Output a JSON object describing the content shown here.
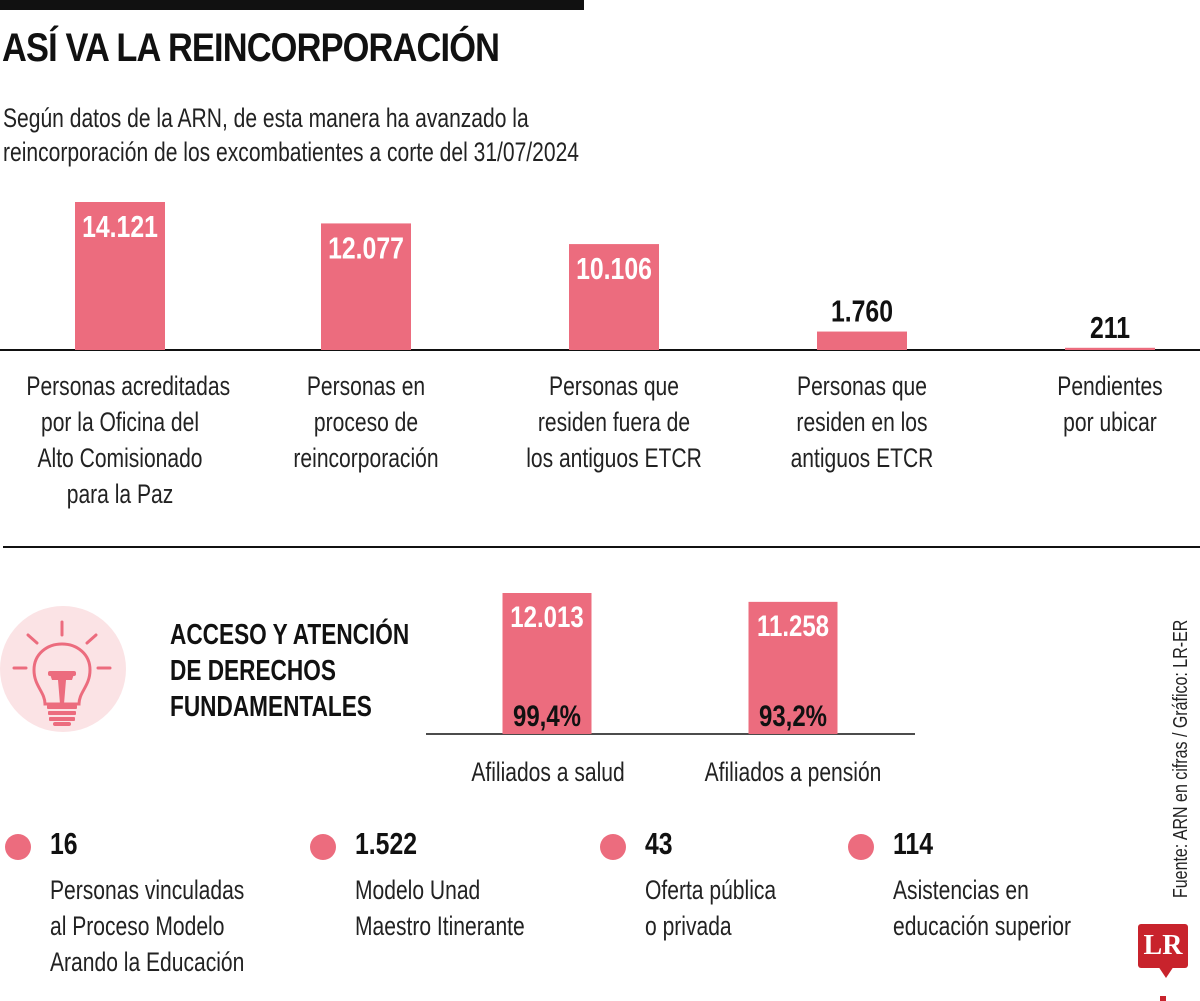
{
  "header": {
    "title": "ASÍ VA LA REINCORPORACIÓN",
    "subtitle_lines": [
      "Según datos de la ARN, de esta manera ha avanzado la",
      "reincorporación de los excombatientes a corte del 31/07/2024"
    ]
  },
  "colors": {
    "bar": "#ec6c7e",
    "icon_background": "#fbe3e5",
    "text": "#111111",
    "logo": "#c8232c"
  },
  "chart_data": [
    {
      "type": "bar",
      "title": "Así va la reincorporación",
      "categories": [
        "Personas acreditadas por la Oficina del Alto Comisionado para la Paz",
        "Personas en proceso de reincorporación",
        "Personas que residen fuera de los antiguos ETCR",
        "Personas que residen en los antiguos ETCR",
        "Pendientes por ubicar"
      ],
      "category_lines": [
        [
          "Personas acreditadas",
          "por la Oficina del",
          "Alto Comisionado",
          "para la Paz"
        ],
        [
          "Personas en",
          "proceso de",
          "reincorporación"
        ],
        [
          "Personas que",
          "residen fuera de",
          "los antiguos ETCR"
        ],
        [
          "Personas que",
          "residen en los",
          "antiguos ETCR"
        ],
        [
          "Pendientes",
          "por ubicar"
        ]
      ],
      "values": [
        14121,
        12077,
        10106,
        1760,
        211
      ],
      "value_labels": [
        "14.121",
        "12.077",
        "10.106",
        "1.760",
        "211"
      ],
      "xlabel": "",
      "ylabel": "",
      "ylim": [
        0,
        14121
      ],
      "grid": false,
      "legend": "none"
    },
    {
      "type": "bar",
      "title": "Acceso y atención de derechos fundamentales",
      "categories": [
        "Afiliados a salud",
        "Afiliados a pensión"
      ],
      "values": [
        12013,
        11258
      ],
      "value_labels": [
        "12.013",
        "11.258"
      ],
      "percentages": [
        99.4,
        93.2
      ],
      "percentage_labels": [
        "99,4%",
        "93,2%"
      ],
      "xlabel": "",
      "ylabel": "",
      "ylim": [
        0,
        12013
      ],
      "grid": false,
      "legend": "none"
    }
  ],
  "section": {
    "title_lines": [
      "ACCESO Y ATENCIÓN",
      "DE DERECHOS",
      "FUNDAMENTALES"
    ],
    "icon": "lightbulb-icon"
  },
  "stats": [
    {
      "value": "16",
      "lines": [
        "Personas vinculadas",
        "al Proceso Modelo",
        "Arando la Educación"
      ]
    },
    {
      "value": "1.522",
      "lines": [
        "Modelo Unad",
        "Maestro Itinerante"
      ]
    },
    {
      "value": "43",
      "lines": [
        "Oferta pública",
        "o privada"
      ]
    },
    {
      "value": "114",
      "lines": [
        "Asistencias en",
        "educación superior"
      ]
    }
  ],
  "footer": {
    "source": "Fuente: ARN en cifras / Gráfico: LR-ER",
    "logo_text": "LR"
  }
}
